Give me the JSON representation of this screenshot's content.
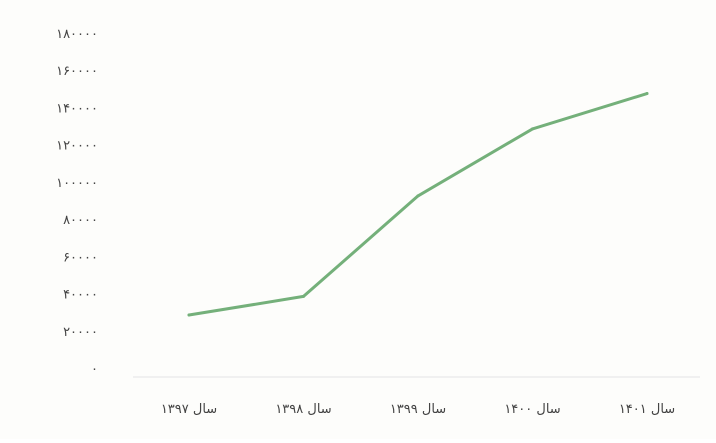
{
  "chart_data": {
    "type": "line",
    "title": "",
    "xlabel": "",
    "ylabel": "",
    "categories": [
      "سال ۱۳۹۷",
      "سال ۱۳۹۸",
      "سال ۱۳۹۹",
      "سال ۱۴۰۰",
      "سال ۱۴۰۱"
    ],
    "y_ticks": [
      "۰",
      "۲۰۰۰۰",
      "۴۰۰۰۰",
      "۶۰۰۰۰",
      "۸۰۰۰۰",
      "۱۰۰۰۰۰",
      "۱۲۰۰۰۰",
      "۱۴۰۰۰۰",
      "۱۶۰۰۰۰",
      "۱۸۰۰۰۰"
    ],
    "ylim": [
      0,
      180000
    ],
    "grid": false,
    "legend": "none",
    "series": [
      {
        "values": [
          29000,
          39000,
          93000,
          129000,
          148000
        ],
        "color": "#74b07a"
      }
    ]
  }
}
